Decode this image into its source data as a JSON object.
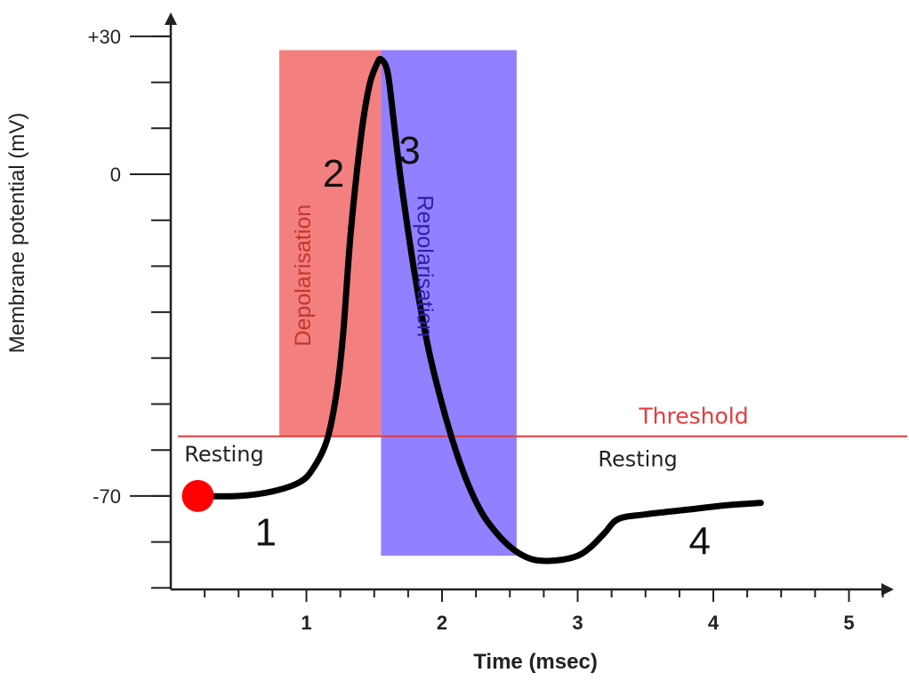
{
  "chart_data": {
    "type": "line",
    "title": "",
    "xlabel": "Time (msec)",
    "ylabel": "Membrane potential (mV)",
    "xlim": [
      0,
      5.3
    ],
    "ylim": [
      -100,
      50
    ],
    "x_ticks": [
      1,
      2,
      3,
      4,
      5
    ],
    "x_tick_labels": [
      "1",
      "2",
      "3",
      "4",
      "5"
    ],
    "y_ticks": [
      30,
      0,
      -70
    ],
    "y_tick_labels": [
      "+30",
      "0",
      "-70"
    ],
    "y_minor_step": 10,
    "grid": false,
    "series": [
      {
        "color": "#000000",
        "x": [
          0.2,
          0.5,
          0.75,
          0.95,
          1.05,
          1.15,
          1.22,
          1.27,
          1.32,
          1.37,
          1.42,
          1.47,
          1.52,
          1.55,
          1.6,
          1.65,
          1.7,
          1.8,
          1.9,
          2.0,
          2.1,
          2.2,
          2.3,
          2.4,
          2.5,
          2.6,
          2.7,
          2.85,
          3.0,
          3.1,
          3.2,
          3.3,
          3.5,
          3.8,
          4.1,
          4.35
        ],
        "y": [
          -70,
          -70,
          -69,
          -67,
          -64,
          -58,
          -48,
          -35,
          -15,
          0,
          12,
          20,
          24,
          25,
          22,
          10,
          -2,
          -22,
          -38,
          -50,
          -60,
          -68,
          -74,
          -78,
          -81,
          -83,
          -84,
          -84,
          -83,
          -81,
          -78,
          -75,
          -74,
          -73,
          -72,
          -71.5
        ]
      }
    ],
    "bands": [
      {
        "label": "Depolarisation",
        "x_start": 0.8,
        "x_end": 1.55,
        "y_start": -57,
        "y_end": 27,
        "color": "#f47f7f",
        "label_color": "#c0392b"
      },
      {
        "label": "Repolarisation",
        "x_start": 1.55,
        "x_end": 2.55,
        "y_start": -83,
        "y_end": 27,
        "color": "#9180ff",
        "label_color": "#2f1fa6"
      }
    ],
    "threshold": {
      "label": "Threshold",
      "y": -57,
      "color": "#e63b3b"
    },
    "resting_marker": {
      "x": 0.2,
      "y": -70,
      "color": "#ff0000"
    },
    "state_labels": [
      {
        "text": "Resting",
        "x": 0.1,
        "y": -62.5
      },
      {
        "text": "Resting",
        "x": 3.15,
        "y": -63.5
      }
    ],
    "phase_labels": [
      {
        "text": "1",
        "x": 0.62,
        "y": -78
      },
      {
        "text": "2",
        "x": 1.12,
        "y": 0
      },
      {
        "text": "3",
        "x": 1.68,
        "y": 5
      },
      {
        "text": "4",
        "x": 3.82,
        "y": -80
      }
    ]
  }
}
